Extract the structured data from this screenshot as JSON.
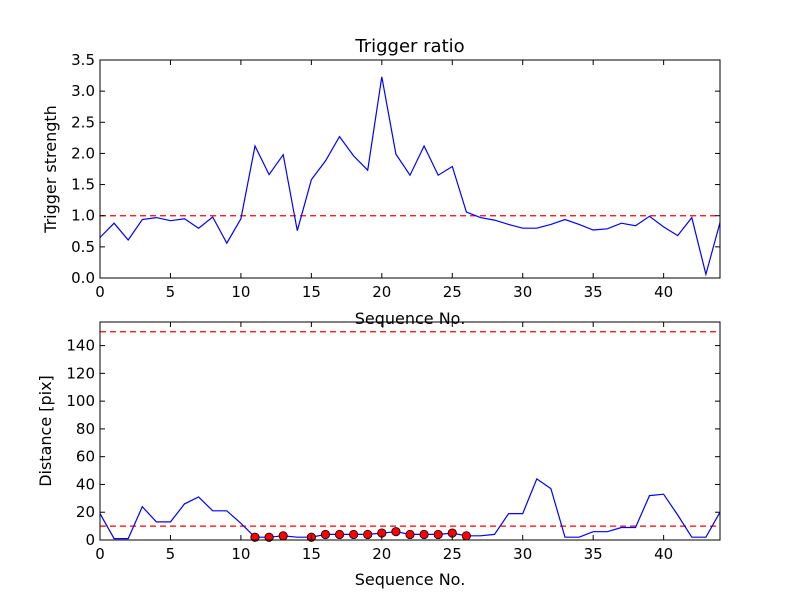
{
  "chart_data": [
    {
      "type": "line",
      "title": "Trigger ratio",
      "xlabel": "Sequence No.",
      "ylabel": "Trigger strength",
      "xlim": [
        0,
        44
      ],
      "ylim": [
        0,
        3.5
      ],
      "xticks": [
        "0",
        "5",
        "10",
        "15",
        "20",
        "25",
        "30",
        "35",
        "40"
      ],
      "yticks": [
        "0.0",
        "0.5",
        "1.0",
        "1.5",
        "2.0",
        "2.5",
        "3.0",
        "3.5"
      ],
      "grid": false,
      "line_color": "#0000ff",
      "threshold": {
        "y": 1.0,
        "style": "dashed",
        "color": "#ff0000"
      },
      "x": [
        0,
        1,
        2,
        3,
        4,
        5,
        6,
        7,
        8,
        9,
        10,
        11,
        12,
        13,
        14,
        15,
        16,
        17,
        18,
        19,
        20,
        21,
        22,
        23,
        24,
        25,
        26,
        27,
        28,
        29,
        30,
        31,
        32,
        33,
        34,
        35,
        36,
        37,
        38,
        39,
        40,
        41,
        42,
        43,
        44
      ],
      "values": [
        0.65,
        0.88,
        0.61,
        0.94,
        0.97,
        0.92,
        0.95,
        0.8,
        0.98,
        0.56,
        0.95,
        2.12,
        1.66,
        1.98,
        0.76,
        1.58,
        1.88,
        2.27,
        1.96,
        1.73,
        3.23,
        1.99,
        1.65,
        2.12,
        1.65,
        1.79,
        1.06,
        0.97,
        0.93,
        0.86,
        0.8,
        0.8,
        0.86,
        0.94,
        0.86,
        0.77,
        0.79,
        0.88,
        0.84,
        0.99,
        0.82,
        0.68,
        0.97,
        0.06,
        0.89
      ]
    },
    {
      "type": "line",
      "title": "",
      "xlabel": "Sequence No.",
      "ylabel": "Distance [pix]",
      "xlim": [
        0,
        44
      ],
      "ylim": [
        0,
        157
      ],
      "xticks": [
        "0",
        "5",
        "10",
        "15",
        "20",
        "25",
        "30",
        "35",
        "40"
      ],
      "yticks": [
        "0",
        "20",
        "40",
        "60",
        "80",
        "100",
        "120",
        "140"
      ],
      "grid": false,
      "line_color": "#0000ff",
      "marker_color": "#ff0000",
      "thresholds": [
        {
          "y": 10,
          "style": "dashed",
          "color": "#ff0000"
        },
        {
          "y": 150,
          "style": "dashed",
          "color": "#ff0000"
        }
      ],
      "x": [
        0,
        1,
        2,
        3,
        4,
        5,
        6,
        7,
        8,
        9,
        10,
        11,
        12,
        13,
        14,
        15,
        16,
        17,
        18,
        19,
        20,
        21,
        22,
        23,
        24,
        25,
        26,
        27,
        28,
        29,
        30,
        31,
        32,
        33,
        34,
        35,
        36,
        37,
        38,
        39,
        40,
        41,
        42,
        43,
        44
      ],
      "values": [
        19,
        1,
        1,
        24,
        13,
        13,
        26,
        31,
        21,
        21,
        12,
        2,
        2,
        3,
        2,
        2,
        4,
        4,
        4,
        4,
        5,
        6,
        4,
        4,
        4,
        5,
        3,
        3,
        4,
        19,
        19,
        44,
        37,
        2,
        2,
        6,
        6,
        9,
        9,
        32,
        33,
        18,
        2,
        2,
        20
      ],
      "markers": {
        "x": [
          11,
          12,
          13,
          15,
          16,
          17,
          18,
          19,
          20,
          21,
          22,
          23,
          24,
          25,
          26
        ],
        "values": [
          2,
          2,
          3,
          2,
          4,
          4,
          4,
          4,
          5,
          6,
          4,
          4,
          4,
          5,
          3
        ]
      }
    }
  ]
}
